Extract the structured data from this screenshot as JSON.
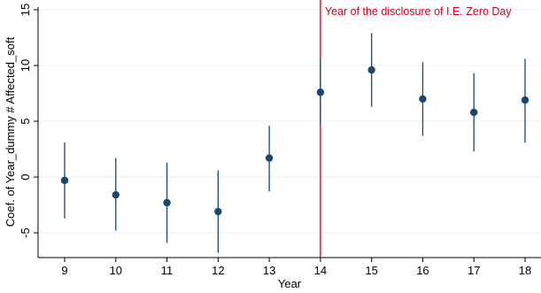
{
  "chart_data": {
    "type": "scatter",
    "subtype": "coefficient plot with confidence intervals",
    "title": "",
    "xlabel": "Year",
    "ylabel": "Coef. of Year_dummy # Affected_soft",
    "x": [
      9,
      10,
      11,
      12,
      13,
      14,
      15,
      16,
      17,
      18
    ],
    "series": [
      {
        "coef": [
          -0.3,
          -1.6,
          -2.3,
          -3.1,
          1.7,
          7.6,
          9.6,
          7.0,
          5.8,
          6.9
        ],
        "ci_low": [
          -3.7,
          -4.8,
          -5.9,
          -6.8,
          -1.3,
          4.6,
          6.3,
          3.7,
          2.3,
          3.1
        ],
        "ci_high": [
          3.1,
          1.7,
          1.3,
          0.6,
          4.6,
          10.6,
          12.9,
          10.3,
          9.3,
          10.6
        ]
      }
    ],
    "xticks": [
      "9",
      "10",
      "11",
      "12",
      "13",
      "14",
      "15",
      "16",
      "17",
      "18"
    ],
    "yticks": [
      "-5",
      "0",
      "5",
      "10",
      "15"
    ],
    "ylim": [
      -7.5,
      15
    ],
    "xlim": [
      8.5,
      18.5
    ],
    "grid": "horizontal",
    "reference_line": {
      "x": 14,
      "label": "Year of the disclosure of I.E. Zero Day"
    },
    "colors": {
      "marker": "#1a476f",
      "reference": "#d0021b",
      "grid": "#eaf0f3"
    }
  }
}
